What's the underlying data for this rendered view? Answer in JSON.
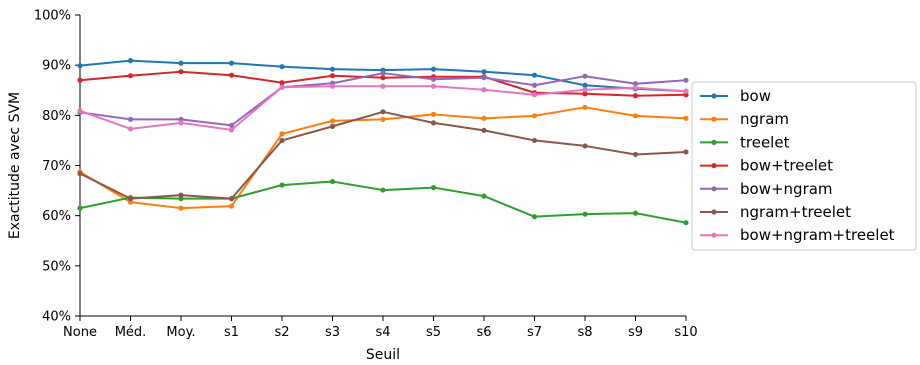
{
  "chart_data": {
    "type": "line",
    "xlabel": "Seuil",
    "ylabel": "Exactitude avec SVM",
    "categories": [
      "None",
      "Méd.",
      "Moy.",
      "s1",
      "s2",
      "s3",
      "s4",
      "s5",
      "s6",
      "s7",
      "s8",
      "s9",
      "s10"
    ],
    "ylim": [
      40,
      100
    ],
    "yticks": [
      40,
      50,
      60,
      70,
      80,
      90,
      100
    ],
    "ytick_labels": [
      "40%",
      "50%",
      "60%",
      "70%",
      "80%",
      "90%",
      "100%"
    ],
    "legend_position": "right",
    "grid": false,
    "series": [
      {
        "name": "bow",
        "color": "#1f77b4",
        "values": [
          89.9,
          90.9,
          90.4,
          90.4,
          89.7,
          89.2,
          89.0,
          89.2,
          88.7,
          88.0,
          86.0,
          85.3,
          84.8
        ]
      },
      {
        "name": "ngram",
        "color": "#ff7f0e",
        "values": [
          68.7,
          62.7,
          61.5,
          61.9,
          76.3,
          78.9,
          79.2,
          80.2,
          79.4,
          79.9,
          81.6,
          79.9,
          79.4
        ]
      },
      {
        "name": "treelet",
        "color": "#2ca02c",
        "values": [
          61.5,
          63.6,
          63.4,
          63.4,
          66.1,
          66.8,
          65.1,
          65.6,
          63.9,
          59.8,
          60.3,
          60.5,
          58.6
        ]
      },
      {
        "name": "bow+treelet",
        "color": "#d62728",
        "values": [
          87.0,
          87.9,
          88.7,
          88.0,
          86.5,
          87.9,
          87.5,
          87.7,
          87.7,
          84.5,
          84.3,
          83.9,
          84.1
        ]
      },
      {
        "name": "bow+ngram",
        "color": "#9467bd",
        "values": [
          80.6,
          79.2,
          79.2,
          78.0,
          85.6,
          86.4,
          88.4,
          87.2,
          87.5,
          86.0,
          87.8,
          86.3,
          87.0
        ]
      },
      {
        "name": "ngram+treelet",
        "color": "#8c564b",
        "values": [
          68.4,
          63.4,
          64.1,
          63.4,
          75.0,
          77.8,
          80.7,
          78.5,
          77.0,
          75.0,
          73.9,
          72.2,
          72.7
        ]
      },
      {
        "name": "bow+ngram+treelet",
        "color": "#e377c2",
        "values": [
          80.9,
          77.3,
          78.5,
          77.1,
          85.6,
          85.8,
          85.8,
          85.8,
          85.1,
          84.1,
          85.1,
          85.5,
          84.8
        ]
      }
    ]
  }
}
